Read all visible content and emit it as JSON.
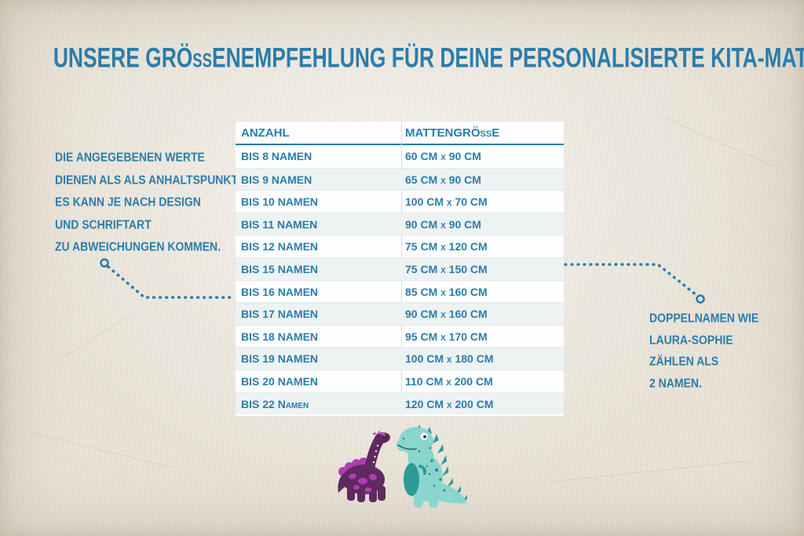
{
  "title": "UNSERE GRÖßENEMPFEHLUNG FÜR DEINE PERSONALISIERTE KITA-MATTE",
  "left_note": {
    "lines": [
      "DIE ANGEGEBENEN WERTE",
      "DIENEN ALS ALS ANHALTSPUNKT.",
      "ES KANN JE NACH DESIGN",
      "UND SCHRIFTART",
      "ZU ABWEICHUNGEN KOMMEN."
    ]
  },
  "right_note": {
    "lines": [
      "DOPPELNAMEN WIE",
      "LAURA-SOPHIE",
      "ZÄHLEN ALS",
      "2 NAMEN."
    ]
  },
  "size_table": {
    "columns": [
      "ANZAHL",
      "MATTENGRÖßE"
    ],
    "rows": [
      {
        "anzahl": "BIS 8 NAMEN",
        "groesse": "60 CM x 90 CM"
      },
      {
        "anzahl": "BIS 9 NAMEN",
        "groesse": "65 CM x 90 CM"
      },
      {
        "anzahl": "BIS 10 NAMEN",
        "groesse": "100 CM x 70 CM"
      },
      {
        "anzahl": "BIS 11 NAMEN",
        "groesse": "90 CM x 90 CM"
      },
      {
        "anzahl": "BIS 12 NAMEN",
        "groesse": "75 CM x 120 CM"
      },
      {
        "anzahl": "BIS 15 NAMEN",
        "groesse": "75 CM x 150 CM"
      },
      {
        "anzahl": "BIS 16 NAMEN",
        "groesse": "85 CM x 160 CM"
      },
      {
        "anzahl": "BIS 17 NAMEN",
        "groesse": "90 CM x 160 CM"
      },
      {
        "anzahl": "BIS 18 NAMEN",
        "groesse": "95 CM x 170 CM"
      },
      {
        "anzahl": "BIS 19 NAMEN",
        "groesse": "100 CM x 180 CM"
      },
      {
        "anzahl": "BIS 20 NAMEN",
        "groesse": "110 CM x 200 CM"
      },
      {
        "anzahl": "BIS 22 Namen",
        "groesse": "120 CM x 200 CM"
      }
    ]
  },
  "illustrations": {
    "left": "purple-dinosaur",
    "right": "teal-dinosaur"
  },
  "colors": {
    "accent_blue": "#2a7dab",
    "table_alt_row": "#edf2f3",
    "paper": "#e9e3d8",
    "dino_purple": "#5e2a60",
    "dino_magenta": "#b03db2",
    "dino_crest_pink": "#c45ec6",
    "dino_teal": "#8ad6cf",
    "dino_teal_dark": "#2d9b97"
  }
}
